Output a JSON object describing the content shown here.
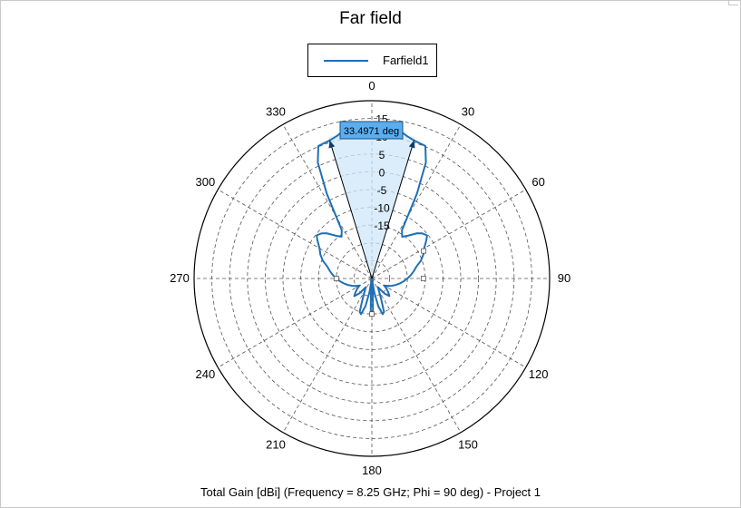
{
  "window": {
    "title": "Far field"
  },
  "legend": {
    "entries": [
      {
        "label": "Farfield1",
        "color": "#1f6fb5"
      }
    ]
  },
  "footer": {
    "caption": "Total Gain [dBi] (Frequency = 8.25 GHz; Phi = 90 deg) - Project 1"
  },
  "marker": {
    "label": "33.4971 deg",
    "left_deg": -17,
    "right_deg": 17
  },
  "chart_data": {
    "type": "polar",
    "title": "Far field",
    "series": [
      {
        "name": "Farfield1",
        "color": "#1f6fb5",
        "theta_deg": [
          0,
          5,
          10,
          14,
          17,
          22,
          25,
          28,
          32,
          36,
          40,
          45,
          48,
          52,
          55,
          60,
          65,
          70,
          75,
          80,
          85,
          90,
          95,
          100,
          105,
          110,
          115,
          120,
          125,
          130,
          135,
          140,
          145,
          150,
          155,
          160,
          163,
          167,
          170,
          173,
          175,
          178,
          180,
          182,
          185,
          187,
          190,
          193,
          197,
          200,
          205,
          210,
          215,
          220,
          225,
          230,
          235,
          240,
          245,
          250,
          255,
          260,
          265,
          270,
          275,
          280,
          285,
          290,
          295,
          300,
          305,
          308,
          312,
          315,
          320,
          324,
          328,
          332,
          335,
          338,
          343,
          346,
          350,
          355,
          360
        ],
        "gain_dbi": [
          14,
          13.6,
          12.6,
          11.2,
          10.6,
          10.2,
          6,
          -3,
          -14,
          -15.5,
          -14.3,
          -12,
          -11,
          -10.3,
          -11.3,
          -13,
          -14,
          -15.3,
          -17,
          -18,
          -19,
          -20,
          -21,
          -22,
          -23,
          -24,
          -25,
          -26,
          -25,
          -24,
          -23,
          -24.5,
          -27,
          -26,
          -24,
          -20,
          -19.5,
          -22,
          -26,
          -30,
          -27,
          -21,
          -20,
          -21,
          -27,
          -30,
          -26,
          -22,
          -19.5,
          -20,
          -24,
          -26,
          -27,
          -24.5,
          -23,
          -24,
          -25,
          -26,
          -25,
          -24,
          -23,
          -22,
          -21,
          -20,
          -19,
          -18,
          -17,
          -15.3,
          -14,
          -13,
          -11.3,
          -10.3,
          -11,
          -12,
          -14.3,
          -15.5,
          -14,
          -3,
          6,
          10.2,
          10.6,
          11.2,
          12.6,
          13.6,
          14
        ]
      }
    ],
    "radial_ticks": [
      15,
      10,
      5,
      0,
      -5,
      -10,
      -15
    ],
    "radial_range": [
      -30,
      20
    ],
    "angular_ticks": [
      0,
      30,
      60,
      90,
      120,
      150,
      180,
      210,
      240,
      270,
      300,
      330
    ],
    "angle_direction": "clockwise",
    "zero_location": "top",
    "grid": true,
    "legend_position": "top"
  }
}
